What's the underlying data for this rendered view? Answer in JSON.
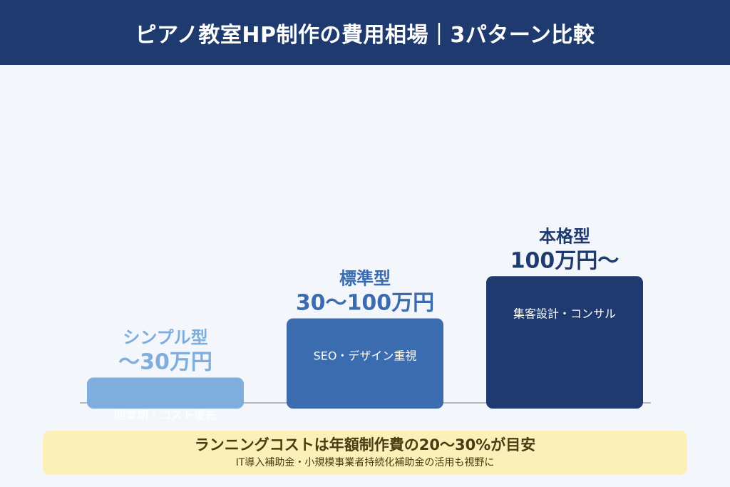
{
  "header": {
    "title": "ピアノ教室HP制作の費用相場｜3パターン比較"
  },
  "chart_data": {
    "type": "bar",
    "categories": [
      "シンプル型",
      "標準型",
      "本格型"
    ],
    "price_labels": [
      "〜30万円",
      "30〜100万円",
      "100万円〜"
    ],
    "notes": [
      "開業期・コスト優先",
      "SEO・デザイン重視",
      "集客設計・コンサル"
    ],
    "values": [
      30,
      100,
      150
    ],
    "colors": [
      "#7faddc",
      "#3b6cb0",
      "#1e3a6e"
    ],
    "label_colors": [
      "#7faddc",
      "#3b6cb0",
      "#1e3a6e"
    ],
    "title": "",
    "xlabel": "",
    "ylabel": "",
    "grid": false
  },
  "footer": {
    "main": "ランニングコストは年額制作費の20〜30%が目安",
    "sub": "IT導入補助金・小規模事業者持続化補助金の活用も視野に"
  }
}
